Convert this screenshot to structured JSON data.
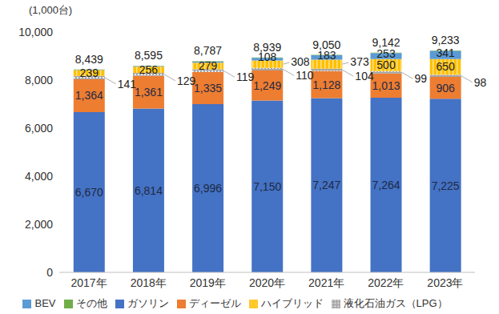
{
  "chart_data": {
    "type": "bar",
    "stacked": true,
    "y_label": "(1,000台)",
    "categories": [
      "2017年",
      "2018年",
      "2019年",
      "2020年",
      "2021年",
      "2022年",
      "2023年"
    ],
    "ylim": [
      0,
      10000
    ],
    "yticks": [
      0,
      {
        "value": 2000,
        "label": "2,000"
      },
      {
        "value": 4000,
        "label": "4,000"
      },
      {
        "value": 6000,
        "label": "6,000"
      },
      {
        "value": 8000,
        "label": "8,000"
      },
      {
        "value": 10000,
        "label": "10,000"
      }
    ],
    "grid": false,
    "legend": "bottom",
    "data_labels": true,
    "series": [
      {
        "name": "ガソリン",
        "color": "#4472c4",
        "values": [
          6670,
          6814,
          6996,
          7150,
          7247,
          7264,
          7225
        ],
        "value_labels": [
          "6,670",
          "6,814",
          "6,996",
          "7,150",
          "7,247",
          "7,264",
          "7,225"
        ]
      },
      {
        "name": "ディーゼル",
        "color": "#ed7d31",
        "values": [
          1364,
          1361,
          1335,
          1249,
          1128,
          1013,
          906
        ],
        "value_labels": [
          "1,364",
          "1,361",
          "1,335",
          "1,249",
          "1,128",
          "1,013",
          "906"
        ]
      },
      {
        "name": "液化石油ガス（LPG）",
        "color": "#a5a5a5",
        "values": [
          141,
          129,
          119,
          110,
          104,
          99,
          98
        ],
        "data_labels": true
      },
      {
        "name": "ハイブリッド",
        "color": "#ffc000",
        "values": [
          239,
          256,
          279,
          308,
          373,
          500,
          650
        ],
        "data_labels": true
      },
      {
        "name": "BEV",
        "color": "#5b9bd5",
        "values": [
          12,
          18,
          40,
          108,
          183,
          253,
          341
        ],
        "value_labels": [
          null,
          null,
          null,
          "108",
          "183",
          "253",
          "341"
        ]
      },
      {
        "name": "その他",
        "color": "#70ad47",
        "values": [
          13,
          17,
          18,
          14,
          15,
          13,
          13
        ],
        "data_labels": false
      }
    ],
    "totals": {
      "values": [
        8439,
        8595,
        8787,
        8939,
        9050,
        9142,
        9233
      ],
      "value_labels": [
        "8,439",
        "8,595",
        "8,787",
        "8,939",
        "9,050",
        "9,142",
        "9,233"
      ]
    }
  }
}
